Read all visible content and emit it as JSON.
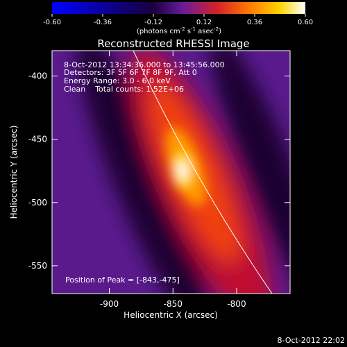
{
  "chart_data": {
    "type": "heatmap",
    "title": "Reconstructed RHESSI Image",
    "xlabel": "Heliocentric X (arcsec)",
    "ylabel": "Heliocentric Y (arcsec)",
    "xlim": [
      -945,
      -758
    ],
    "ylim": [
      -572,
      -380
    ],
    "xticks": [
      -900,
      -850,
      -800
    ],
    "yticks": [
      -400,
      -450,
      -500,
      -550
    ],
    "colorbar": {
      "lim": [
        -0.6,
        0.6
      ],
      "ticks": [
        {
          "value": -0.6,
          "label": "-0.60"
        },
        {
          "value": -0.36,
          "label": "-0.36"
        },
        {
          "value": -0.12,
          "label": "-0.12"
        },
        {
          "value": 0.12,
          "label": "0.12"
        },
        {
          "value": 0.36,
          "label": "0.36"
        },
        {
          "value": 0.6,
          "label": "0.60"
        }
      ],
      "unit": [
        "(photons cm",
        "-2",
        " s",
        "-1",
        " asec",
        "-2",
        ")"
      ]
    },
    "annotations": [
      "8-Oct-2012 13:34:36.000 to 13:45:56.000",
      "Detectors: 3F 5F 6F 7F 8F 9F, Att 0",
      "Energy Range: 3.0 - 6.0 keV",
      "Clean    Total counts: 1.52E+06"
    ],
    "peak_label": "Position of Peak = [-843,-475]",
    "timestamp": "8-Oct-2012 22:02"
  }
}
